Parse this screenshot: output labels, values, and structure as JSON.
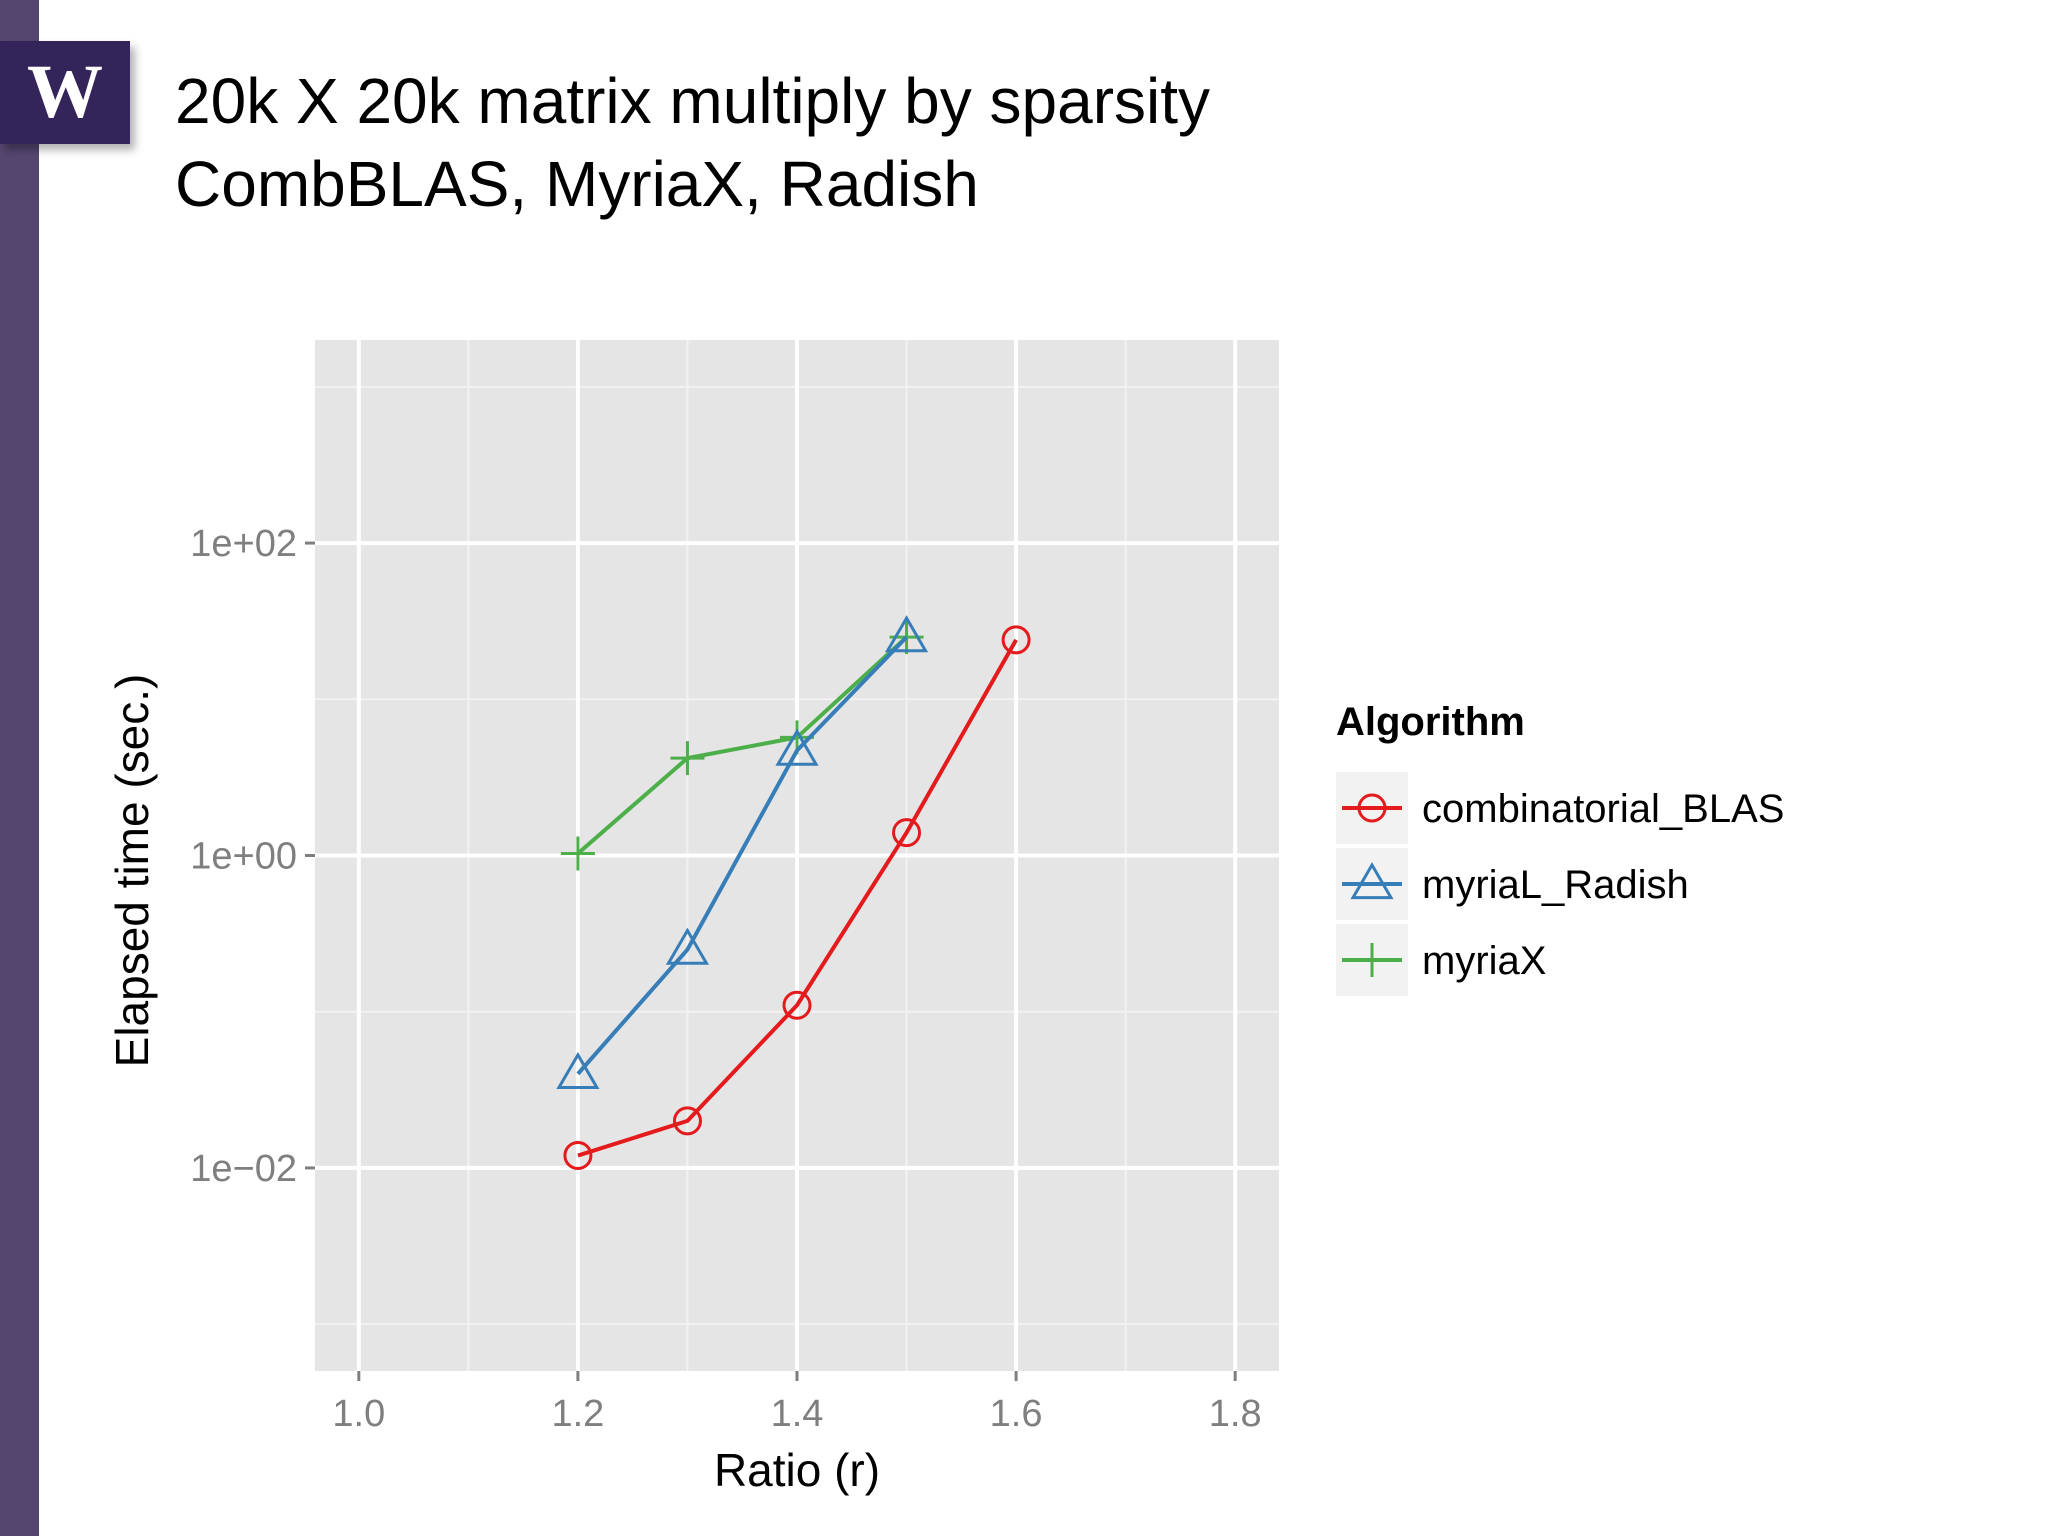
{
  "slide": {
    "logo_text": "W",
    "title_line1": "20k X 20k matrix multiply by sparsity",
    "title_line2": "CombBLAS, MyriaX, Radish",
    "accent_color": "#54466f",
    "logo_color": "#33245a"
  },
  "chart_data": {
    "type": "line",
    "title": "",
    "xlabel": "Ratio (r)",
    "ylabel": "Elapsed time (sec.)",
    "xlim": [
      0.96,
      1.84
    ],
    "ylim_log10": [
      -3.3,
      3.3
    ],
    "y_scale": "log",
    "x_ticks": [
      {
        "value": 1.0,
        "label": "1.0"
      },
      {
        "value": 1.2,
        "label": "1.2"
      },
      {
        "value": 1.4,
        "label": "1.4"
      },
      {
        "value": 1.6,
        "label": "1.6"
      },
      {
        "value": 1.8,
        "label": "1.8"
      }
    ],
    "y_ticks": [
      {
        "log10": 2,
        "label": "1e+02"
      },
      {
        "log10": 0,
        "label": "1e+00"
      },
      {
        "log10": -2,
        "label": "1e−02"
      }
    ],
    "grid": true,
    "panel_background": "#e5e5e5",
    "legend": {
      "title": "Algorithm",
      "position": "right"
    },
    "series": [
      {
        "name": "combinatorial_BLAS",
        "color": "#e41a1c",
        "marker": "circle",
        "x": [
          1.2,
          1.3,
          1.4,
          1.5,
          1.6
        ],
        "y": [
          0.012,
          0.02,
          0.11,
          1.4,
          24
        ]
      },
      {
        "name": "myriaL_Radish",
        "color": "#377eb8",
        "marker": "triangle",
        "x": [
          1.2,
          1.3,
          1.4,
          1.5
        ],
        "y": [
          0.04,
          0.25,
          4.7,
          25
        ]
      },
      {
        "name": "myriaX",
        "color": "#4daf4a",
        "marker": "plus",
        "x": [
          1.2,
          1.3,
          1.4,
          1.5
        ],
        "y": [
          1.03,
          4.2,
          5.7,
          25
        ]
      }
    ]
  }
}
